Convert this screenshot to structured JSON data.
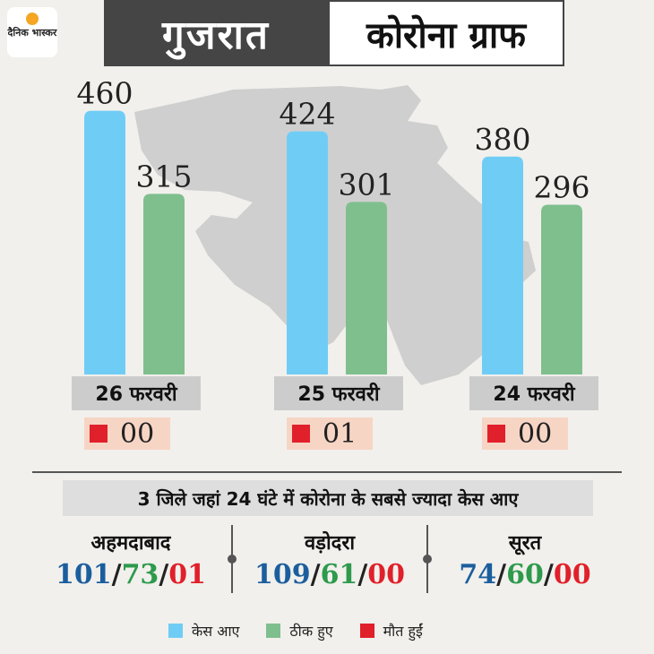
{
  "brand": {
    "logo_text": "दैनिक भास्कर",
    "logo_color": "#f5a623"
  },
  "header": {
    "state": "गुजरात",
    "title": "कोरोना ग्राफ"
  },
  "colors": {
    "cases": "#6fcdf5",
    "recovered": "#7fbf8e",
    "deaths": "#e0202a"
  },
  "chart_data": {
    "type": "bar",
    "categories": [
      "26 फरवरी",
      "25 फरवरी",
      "24 फरवरी"
    ],
    "series": [
      {
        "name": "केस आए",
        "values": [
          460,
          424,
          380
        ]
      },
      {
        "name": "ठीक हुए",
        "values": [
          315,
          301,
          296
        ]
      },
      {
        "name": "मौत हुईं",
        "values": [
          "00",
          "01",
          "00"
        ]
      }
    ],
    "grid": false,
    "legend_position": "bottom-center"
  },
  "districts_title": "3 जिले जहां 24 घंटे में कोरोना के सबसे ज्यादा केस आए",
  "districts": [
    {
      "name": "अहमदाबाद",
      "cases": "101",
      "recovered": "73",
      "deaths": "01"
    },
    {
      "name": "वड़ोदरा",
      "cases": "109",
      "recovered": "61",
      "deaths": "00"
    },
    {
      "name": "सूरत",
      "cases": "74",
      "recovered": "60",
      "deaths": "00"
    }
  ],
  "legend": [
    {
      "label": "केस आए",
      "color": "#6fcdf5"
    },
    {
      "label": "ठीक हुए",
      "color": "#7fbf8e"
    },
    {
      "label": "मौत हुईं",
      "color": "#e0202a"
    }
  ]
}
